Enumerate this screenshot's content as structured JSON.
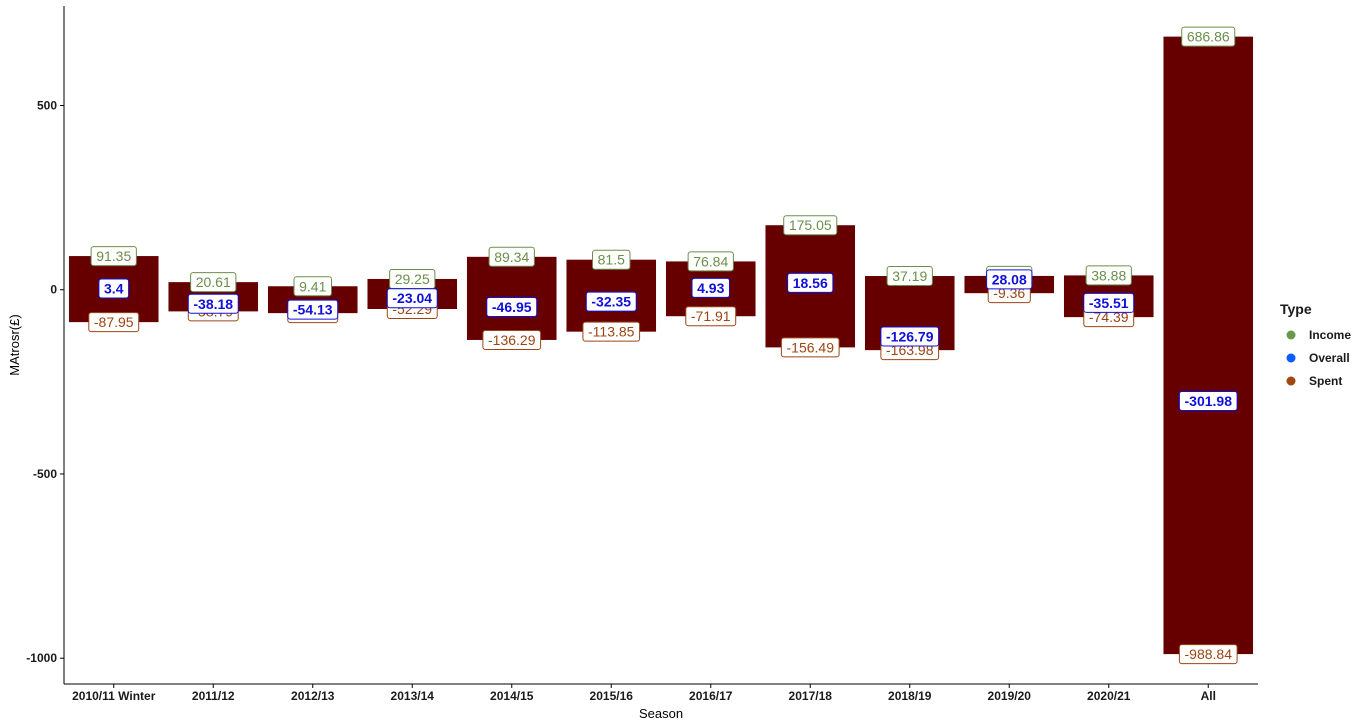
{
  "chart_data": {
    "type": "bar",
    "xlabel": "Season",
    "ylabel": "MAtrosr(£)",
    "ylim": [
      -1070,
      770
    ],
    "yticks": [
      -1000,
      -500,
      0,
      500
    ],
    "categories": [
      "2010/11 Winter",
      "2011/12",
      "2012/13",
      "2013/14",
      "2014/15",
      "2015/16",
      "2016/17",
      "2017/18",
      "2018/19",
      "2019/20",
      "2020/21",
      "All"
    ],
    "series": [
      {
        "name": "Income",
        "values": [
          91.35,
          20.61,
          9.41,
          29.25,
          89.34,
          81.5,
          76.84,
          175.05,
          37.19,
          37.44,
          38.88,
          686.86
        ]
      },
      {
        "name": "Overall",
        "values": [
          3.4,
          -38.18,
          -54.13,
          -23.04,
          -46.95,
          -32.35,
          4.93,
          18.56,
          -126.79,
          28.08,
          -35.51,
          -301.98
        ]
      },
      {
        "name": "Spent",
        "values": [
          -87.95,
          -58.79,
          -63.54,
          -52.29,
          -136.29,
          -113.85,
          -71.91,
          -156.49,
          -163.98,
          -9.36,
          -74.39,
          -988.84
        ]
      }
    ],
    "value_labels": {
      "Income": [
        "91.35",
        "20.61",
        "9.41",
        "29.25",
        "89.34",
        "81.5",
        "76.84",
        "175.05",
        "37.19",
        "37.44",
        "38.88",
        "686.86"
      ],
      "Overall": [
        "3.4",
        "-38.18",
        "-54.13",
        "-23.04",
        "-46.95",
        "-32.35",
        "4.93",
        "18.56",
        "-126.79",
        "28.08",
        "-35.51",
        "-301.98"
      ],
      "Spent": [
        "-87.95",
        "-58.79",
        "-63.54",
        "-52.29",
        "-136.29",
        "-113.85",
        "-71.91",
        "-156.49",
        "-163.98",
        "-9.36",
        "-74.39",
        "-988.84"
      ]
    },
    "legend": {
      "title": "Type",
      "position": "right",
      "entries": [
        {
          "name": "Income",
          "color": "#6a994e"
        },
        {
          "name": "Overall",
          "color": "#0a5cff"
        },
        {
          "name": "Spent",
          "color": "#a0470f"
        }
      ]
    },
    "bar_color": "#660000",
    "label_colors": {
      "Income": "#6a8f4a",
      "Overall": "#1010dd",
      "Spent": "#9c4514"
    },
    "grid": false
  }
}
